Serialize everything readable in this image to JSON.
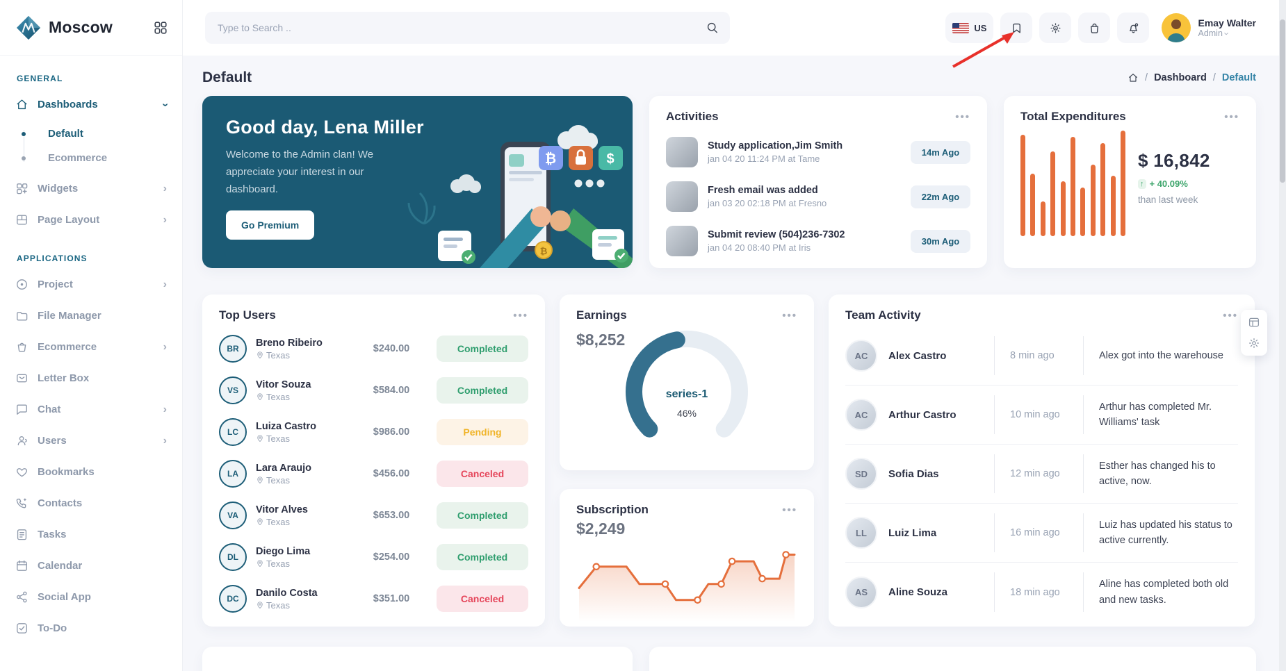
{
  "brand": {
    "name": "Moscow"
  },
  "ui": {
    "more_menu": "•••"
  },
  "topbar": {
    "search_placeholder": "Type to Search ..",
    "language": "US",
    "user": {
      "name": "Emay Walter",
      "role": "Admin"
    }
  },
  "sidebar": {
    "general": {
      "label": "GENERAL",
      "top": [
        {
          "name": "Dashboards",
          "icon": "home",
          "chevron": "down",
          "active": true
        }
      ],
      "children": [
        {
          "label": "Default",
          "active": true
        },
        {
          "label": "Ecommerce"
        }
      ],
      "rest": [
        {
          "name": "Widgets",
          "icon": "widgets",
          "chevron": "right"
        },
        {
          "name": "Page Layout",
          "icon": "layout",
          "chevron": "right"
        }
      ]
    },
    "applications": {
      "label": "APPLICATIONS",
      "items": [
        {
          "name": "Project",
          "icon": "target",
          "chevron": "right"
        },
        {
          "name": "File Manager",
          "icon": "folder"
        },
        {
          "name": "Ecommerce",
          "icon": "basket",
          "chevron": "right"
        },
        {
          "name": "Letter Box",
          "icon": "mail"
        },
        {
          "name": "Chat",
          "icon": "chat",
          "chevron": "right"
        },
        {
          "name": "Users",
          "icon": "user",
          "chevron": "right"
        },
        {
          "name": "Bookmarks",
          "icon": "heart"
        },
        {
          "name": "Contacts",
          "icon": "phone"
        },
        {
          "name": "Tasks",
          "icon": "clipboard"
        },
        {
          "name": "Calendar",
          "icon": "calendar"
        },
        {
          "name": "Social App",
          "icon": "share"
        },
        {
          "name": "To-Do",
          "icon": "check"
        }
      ]
    }
  },
  "page": {
    "title": "Default",
    "breadcrumb": {
      "items": [
        "Dashboard",
        "Default"
      ]
    }
  },
  "welcome": {
    "title": "Good day, Lena Miller",
    "message": "Welcome to the Admin clan! We appreciate your interest in our dashboard.",
    "cta": "Go Premium"
  },
  "activities": {
    "title": "Activities",
    "items": [
      {
        "title": "Study application,Jim Smith",
        "meta": "jan 04 20 11:24 PM at Tame",
        "ago": "14m Ago"
      },
      {
        "title": "Fresh email was added",
        "meta": "jan 03 20 02:18 PM at Fresno",
        "ago": "22m Ago"
      },
      {
        "title": "Submit review (504)236-7302",
        "meta": "jan 04 20 08:40 PM at Iris",
        "ago": "30m Ago"
      }
    ]
  },
  "expenditures": {
    "title": "Total Expenditures",
    "amount": "$ 16,842",
    "delta_arrow": "↑",
    "delta": "+ 40.09%",
    "caption": "than last week"
  },
  "top_users": {
    "title": "Top Users",
    "rows": [
      {
        "initials": "BR",
        "name": "Breno Ribeiro",
        "location": "Texas",
        "amount": "$240.00",
        "status": "Completed",
        "status_key": "completed"
      },
      {
        "initials": "VS",
        "name": "Vitor Souza",
        "location": "Texas",
        "amount": "$584.00",
        "status": "Completed",
        "status_key": "completed"
      },
      {
        "initials": "LC",
        "name": "Luiza Castro",
        "location": "Texas",
        "amount": "$986.00",
        "status": "Pending",
        "status_key": "pending"
      },
      {
        "initials": "LA",
        "name": "Lara Araujo",
        "location": "Texas",
        "amount": "$456.00",
        "status": "Canceled",
        "status_key": "canceled"
      },
      {
        "initials": "VA",
        "name": "Vitor Alves",
        "location": "Texas",
        "amount": "$653.00",
        "status": "Completed",
        "status_key": "completed"
      },
      {
        "initials": "DL",
        "name": "Diego Lima",
        "location": "Texas",
        "amount": "$254.00",
        "status": "Completed",
        "status_key": "completed"
      },
      {
        "initials": "DC",
        "name": "Danilo Costa",
        "location": "Texas",
        "amount": "$351.00",
        "status": "Canceled",
        "status_key": "canceled"
      }
    ]
  },
  "earnings": {
    "title": "Earnings",
    "amount": "$8,252",
    "series_label": "series-1",
    "percent": "46%"
  },
  "subscription": {
    "title": "Subscription",
    "amount": "$2,249"
  },
  "team_activity": {
    "title": "Team Activity",
    "rows": [
      {
        "initials": "AC",
        "name": "Alex Castro",
        "time": "8 min ago",
        "message": "Alex got into the warehouse"
      },
      {
        "initials": "AC",
        "name": "Arthur Castro",
        "time": "10 min ago",
        "message": "Arthur has completed Mr. Williams' task"
      },
      {
        "initials": "SD",
        "name": "Sofia Dias",
        "time": "12 min ago",
        "message": "Esther has changed his to active, now."
      },
      {
        "initials": "LL",
        "name": "Luiz Lima",
        "time": "16 min ago",
        "message": "Luiz has updated his status to active currently."
      },
      {
        "initials": "AS",
        "name": "Aline Souza",
        "time": "18 min ago",
        "message": "Aline has completed both old and new tasks."
      }
    ]
  },
  "chart_data": [
    {
      "type": "bar",
      "title": "Total Expenditures",
      "values": [
        96,
        59,
        33,
        80,
        52,
        94,
        46,
        68,
        88,
        57,
        100
      ],
      "ylim": [
        0,
        100
      ],
      "color": "#e56f3c",
      "axis_labels_visible": false
    },
    {
      "type": "gauge",
      "title": "Earnings",
      "series": [
        {
          "name": "series-1",
          "value": 46
        }
      ],
      "center_labels": [
        "series-1",
        "46%"
      ],
      "total_label": "$8,252",
      "arc_degrees": 270,
      "color": "#35708e",
      "track_color": "#e7edf3"
    },
    {
      "type": "line",
      "subtype": "stepline",
      "title": "Subscription",
      "total_label": "$2,249",
      "x": [
        0,
        8,
        22,
        28,
        40,
        45,
        55,
        60,
        66,
        71,
        81,
        85,
        93,
        96,
        100
      ],
      "values": [
        38,
        70,
        70,
        44,
        44,
        20,
        20,
        44,
        44,
        78,
        78,
        52,
        52,
        88,
        88
      ],
      "marker_indices": [
        1,
        4,
        6,
        8,
        9,
        11,
        13
      ],
      "ylim": [
        0,
        100
      ],
      "color": "#e56f3c",
      "axis_labels_visible": false
    }
  ],
  "colors": {
    "primary": "#1c5d77",
    "accent_orange": "#e56f3c",
    "success": "#3fa66d",
    "warning": "#f0b429",
    "danger": "#e5455a",
    "welcome_bg": "#1b5a74",
    "page_bg": "#f6f7fb"
  }
}
